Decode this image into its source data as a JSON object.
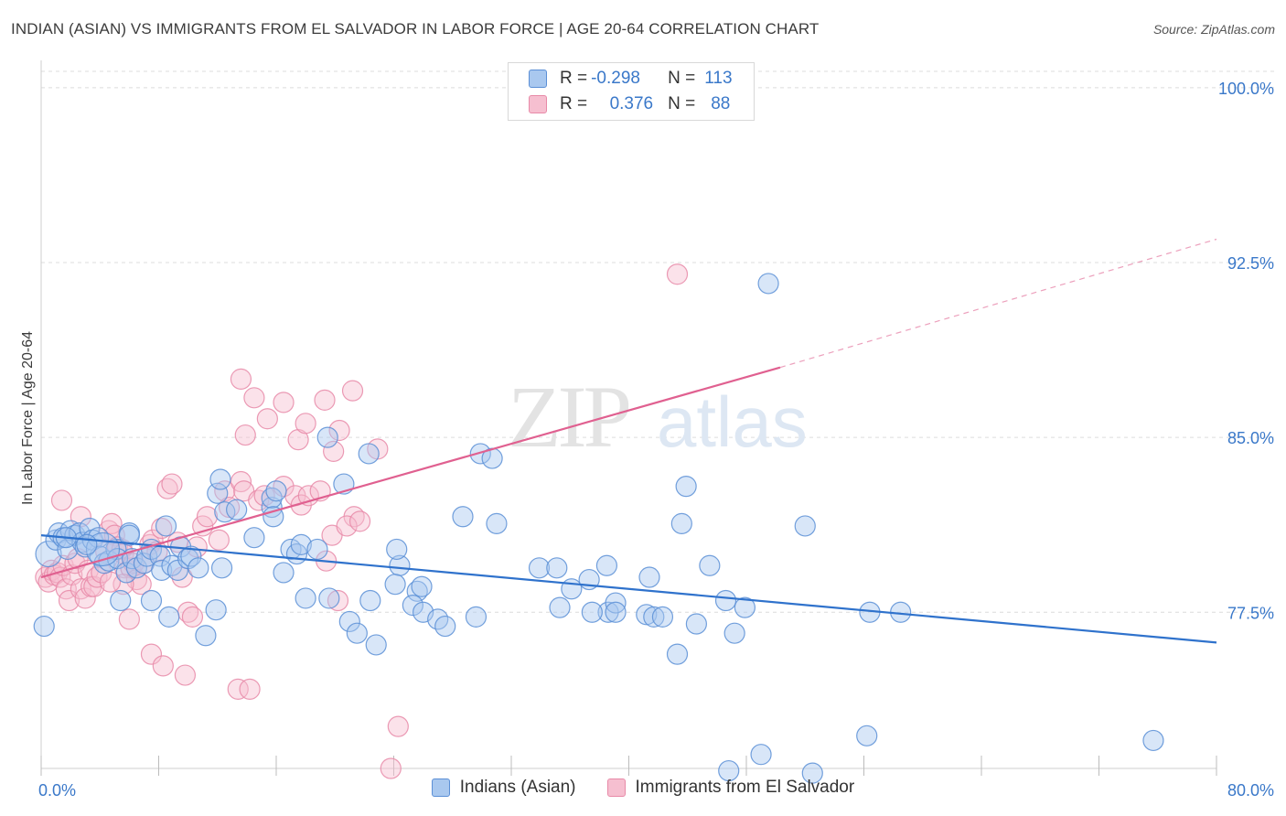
{
  "header": {
    "title": "INDIAN (ASIAN) VS IMMIGRANTS FROM EL SALVADOR IN LABOR FORCE | AGE 20-64 CORRELATION CHART",
    "source": "Source: ZipAtlas.com"
  },
  "watermark": {
    "zip": "ZIP",
    "atlas": "atlas"
  },
  "legend": {
    "rows": [
      {
        "r_label": "R =",
        "r_value": "-0.298",
        "n_label": "N =",
        "n_value": "113"
      },
      {
        "r_label": "R =",
        "r_value": "0.376",
        "n_label": "N =",
        "n_value": "88"
      }
    ]
  },
  "colors": {
    "blue_fill": "#a9c8ef",
    "blue_stroke": "#5b8fd6",
    "blue_line": "#2f72cc",
    "pink_fill": "#f6bfd0",
    "pink_stroke": "#e88aa8",
    "pink_line": "#e06090",
    "axis_text": "#3a78c9",
    "grid": "#dcdcdc"
  },
  "chart_data": {
    "type": "scatter",
    "title": "INDIAN (ASIAN) VS IMMIGRANTS FROM EL SALVADOR IN LABOR FORCE | AGE 20-64 CORRELATION CHART",
    "xlabel": "",
    "ylabel": "In Labor Force | Age 20-64",
    "xlim": [
      0,
      80
    ],
    "ylim": [
      70.8,
      100.7
    ],
    "x_tick_labels": [
      "0.0%",
      "80.0%"
    ],
    "y_ticks": [
      77.5,
      85.0,
      92.5,
      100.0
    ],
    "y_tick_labels": [
      "77.5%",
      "85.0%",
      "92.5%",
      "100.0%"
    ],
    "grid": true,
    "legend_position": "top-center",
    "series": [
      {
        "name": "Indians (Asian)",
        "r": -0.298,
        "n": 113,
        "trend": {
          "x": [
            0,
            80
          ],
          "y": [
            80.8,
            76.2
          ]
        },
        "points": [
          [
            0.5,
            80.0
          ],
          [
            1.0,
            80.6
          ],
          [
            1.2,
            80.9
          ],
          [
            1.5,
            80.7
          ],
          [
            1.8,
            80.2
          ],
          [
            2.0,
            81.0
          ],
          [
            2.3,
            80.8
          ],
          [
            2.6,
            80.9
          ],
          [
            2.8,
            80.5
          ],
          [
            3.0,
            80.3
          ],
          [
            3.3,
            81.1
          ],
          [
            3.5,
            80.6
          ],
          [
            3.9,
            80.7
          ],
          [
            4.0,
            79.9
          ],
          [
            4.3,
            79.6
          ],
          [
            4.6,
            79.7
          ],
          [
            5.1,
            80.2
          ],
          [
            5.2,
            79.8
          ],
          [
            5.4,
            78.0
          ],
          [
            5.8,
            79.2
          ],
          [
            6.0,
            80.9
          ],
          [
            6.2,
            79.8
          ],
          [
            6.5,
            79.4
          ],
          [
            7.0,
            79.6
          ],
          [
            7.2,
            79.9
          ],
          [
            7.5,
            78.0
          ],
          [
            7.5,
            80.2
          ],
          [
            8.1,
            79.9
          ],
          [
            8.2,
            79.3
          ],
          [
            8.5,
            81.2
          ],
          [
            8.7,
            77.3
          ],
          [
            8.9,
            79.5
          ],
          [
            9.3,
            79.3
          ],
          [
            9.5,
            80.3
          ],
          [
            10.0,
            79.8
          ],
          [
            10.2,
            79.9
          ],
          [
            10.7,
            79.4
          ],
          [
            12.0,
            82.6
          ],
          [
            12.2,
            83.2
          ],
          [
            12.3,
            79.4
          ],
          [
            12.5,
            81.8
          ],
          [
            13.3,
            81.9
          ],
          [
            14.5,
            80.7
          ],
          [
            11.2,
            76.5
          ],
          [
            11.9,
            77.6
          ],
          [
            15.7,
            82.0
          ],
          [
            15.7,
            82.4
          ],
          [
            15.8,
            81.6
          ],
          [
            16.0,
            82.7
          ],
          [
            16.5,
            79.2
          ],
          [
            17.0,
            80.2
          ],
          [
            17.4,
            80.0
          ],
          [
            17.7,
            80.4
          ],
          [
            18.0,
            78.1
          ],
          [
            18.8,
            80.2
          ],
          [
            19.6,
            78.1
          ],
          [
            19.5,
            85.0
          ],
          [
            20.6,
            83.0
          ],
          [
            22.3,
            84.3
          ],
          [
            22.4,
            78.0
          ],
          [
            21.0,
            77.1
          ],
          [
            21.5,
            76.6
          ],
          [
            22.8,
            76.1
          ],
          [
            24.4,
            79.5
          ],
          [
            24.1,
            78.7
          ],
          [
            24.2,
            80.2
          ],
          [
            25.6,
            78.4
          ],
          [
            25.9,
            78.6
          ],
          [
            25.3,
            77.8
          ],
          [
            26.0,
            77.5
          ],
          [
            27.0,
            77.2
          ],
          [
            27.5,
            76.9
          ],
          [
            28.7,
            81.6
          ],
          [
            29.6,
            77.3
          ],
          [
            29.9,
            84.3
          ],
          [
            30.7,
            84.1
          ],
          [
            31.0,
            81.3
          ],
          [
            33.9,
            79.4
          ],
          [
            35.1,
            79.4
          ],
          [
            35.3,
            77.7
          ],
          [
            36.1,
            78.5
          ],
          [
            37.3,
            78.9
          ],
          [
            38.5,
            79.5
          ],
          [
            38.6,
            77.5
          ],
          [
            37.5,
            77.5
          ],
          [
            39.1,
            77.9
          ],
          [
            39.1,
            77.5
          ],
          [
            41.2,
            77.4
          ],
          [
            41.4,
            79.0
          ],
          [
            41.7,
            77.3
          ],
          [
            42.3,
            77.3
          ],
          [
            43.3,
            75.7
          ],
          [
            43.6,
            81.3
          ],
          [
            43.9,
            82.9
          ],
          [
            44.6,
            77.0
          ],
          [
            45.5,
            79.5
          ],
          [
            46.6,
            78.0
          ],
          [
            47.2,
            76.6
          ],
          [
            47.9,
            77.7
          ],
          [
            49.0,
            71.4
          ],
          [
            49.5,
            91.6
          ],
          [
            46.8,
            70.7
          ],
          [
            52.0,
            81.2
          ],
          [
            52.5,
            70.6
          ],
          [
            56.2,
            72.2
          ],
          [
            56.4,
            77.5
          ],
          [
            58.5,
            77.5
          ],
          [
            75.7,
            72.0
          ],
          [
            0.2,
            76.9
          ],
          [
            4.2,
            80.2
          ],
          [
            6.0,
            80.8
          ],
          [
            3.1,
            80.4
          ],
          [
            1.7,
            80.7
          ]
        ],
        "sizes": [
          14,
          11,
          11,
          11,
          11,
          11,
          11,
          11,
          11,
          11,
          11,
          11,
          11,
          11,
          11,
          11,
          11,
          11,
          11,
          11,
          11,
          11,
          11,
          11,
          11,
          11,
          11,
          11,
          11,
          11,
          11,
          11,
          11,
          11,
          11,
          11,
          11,
          11,
          11,
          11,
          11,
          11,
          11,
          11,
          11,
          11,
          11,
          11,
          11,
          11,
          11,
          11,
          11,
          11,
          11,
          11,
          11,
          11,
          11,
          11,
          11,
          11,
          11,
          11,
          11,
          11,
          11,
          11,
          11,
          11,
          11,
          11,
          11,
          11,
          11,
          11,
          11,
          11,
          11,
          11,
          11,
          11,
          11,
          11,
          11,
          11,
          11,
          11,
          11,
          11,
          11,
          11,
          11,
          11,
          11,
          11,
          11,
          11,
          11,
          11,
          11,
          11,
          11,
          11,
          11,
          11,
          11,
          11,
          11,
          18,
          11,
          11,
          11,
          11
        ]
      },
      {
        "name": "Immigrants from El Salvador",
        "r": 0.376,
        "n": 88,
        "trend": {
          "x": [
            0,
            50.3
          ],
          "y": [
            79.0,
            88.0
          ]
        },
        "trend_dashed": {
          "x": [
            50.3,
            80
          ],
          "y": [
            88.0,
            93.5
          ]
        },
        "points": [
          [
            0.3,
            79.0
          ],
          [
            0.5,
            78.8
          ],
          [
            0.7,
            79.3
          ],
          [
            0.9,
            79.1
          ],
          [
            1.1,
            79.2
          ],
          [
            1.3,
            79.0
          ],
          [
            1.5,
            79.5
          ],
          [
            1.7,
            78.5
          ],
          [
            1.9,
            78.0
          ],
          [
            2.1,
            79.1
          ],
          [
            2.3,
            79.6
          ],
          [
            2.5,
            79.8
          ],
          [
            2.7,
            78.5
          ],
          [
            3.0,
            78.1
          ],
          [
            3.2,
            79.3
          ],
          [
            3.4,
            78.6
          ],
          [
            3.6,
            78.6
          ],
          [
            3.8,
            79.0
          ],
          [
            4.1,
            79.2
          ],
          [
            4.4,
            80.1
          ],
          [
            4.6,
            81.0
          ],
          [
            4.8,
            81.3
          ],
          [
            5.0,
            80.8
          ],
          [
            5.2,
            80.3
          ],
          [
            5.5,
            80.2
          ],
          [
            5.6,
            80.0
          ],
          [
            5.7,
            79.4
          ],
          [
            6.1,
            79.4
          ],
          [
            6.3,
            79.6
          ],
          [
            6.5,
            78.9
          ],
          [
            6.8,
            78.7
          ],
          [
            7.0,
            79.6
          ],
          [
            7.4,
            80.4
          ],
          [
            7.6,
            80.6
          ],
          [
            7.9,
            80.1
          ],
          [
            8.2,
            81.1
          ],
          [
            8.6,
            82.8
          ],
          [
            8.9,
            83.0
          ],
          [
            9.3,
            80.5
          ],
          [
            9.6,
            79.0
          ],
          [
            10.0,
            77.5
          ],
          [
            10.3,
            77.3
          ],
          [
            10.6,
            80.3
          ],
          [
            11.0,
            81.2
          ],
          [
            11.3,
            81.6
          ],
          [
            12.1,
            80.6
          ],
          [
            12.5,
            82.7
          ],
          [
            12.8,
            82.0
          ],
          [
            13.6,
            83.1
          ],
          [
            13.8,
            82.7
          ],
          [
            14.8,
            82.3
          ],
          [
            15.2,
            82.5
          ],
          [
            16.5,
            82.9
          ],
          [
            17.3,
            82.5
          ],
          [
            17.7,
            82.1
          ],
          [
            18.2,
            82.5
          ],
          [
            19.0,
            82.7
          ],
          [
            19.4,
            79.7
          ],
          [
            19.8,
            80.8
          ],
          [
            20.2,
            78.0
          ],
          [
            21.3,
            81.6
          ],
          [
            5.6,
            78.7
          ],
          [
            4.7,
            78.8
          ],
          [
            6.0,
            77.2
          ],
          [
            7.5,
            75.7
          ],
          [
            8.3,
            75.2
          ],
          [
            9.8,
            74.8
          ],
          [
            13.4,
            74.2
          ],
          [
            14.2,
            74.2
          ],
          [
            13.6,
            87.5
          ],
          [
            14.5,
            86.7
          ],
          [
            15.4,
            85.8
          ],
          [
            13.9,
            85.1
          ],
          [
            17.5,
            84.9
          ],
          [
            18.0,
            85.6
          ],
          [
            16.5,
            86.5
          ],
          [
            19.3,
            86.6
          ],
          [
            21.2,
            87.0
          ],
          [
            20.3,
            85.3
          ],
          [
            19.9,
            84.4
          ],
          [
            20.8,
            81.2
          ],
          [
            21.7,
            81.4
          ],
          [
            22.9,
            84.5
          ],
          [
            24.3,
            72.6
          ],
          [
            23.8,
            70.8
          ],
          [
            43.3,
            92.0
          ],
          [
            1.4,
            82.3
          ],
          [
            2.7,
            81.6
          ]
        ]
      }
    ]
  }
}
